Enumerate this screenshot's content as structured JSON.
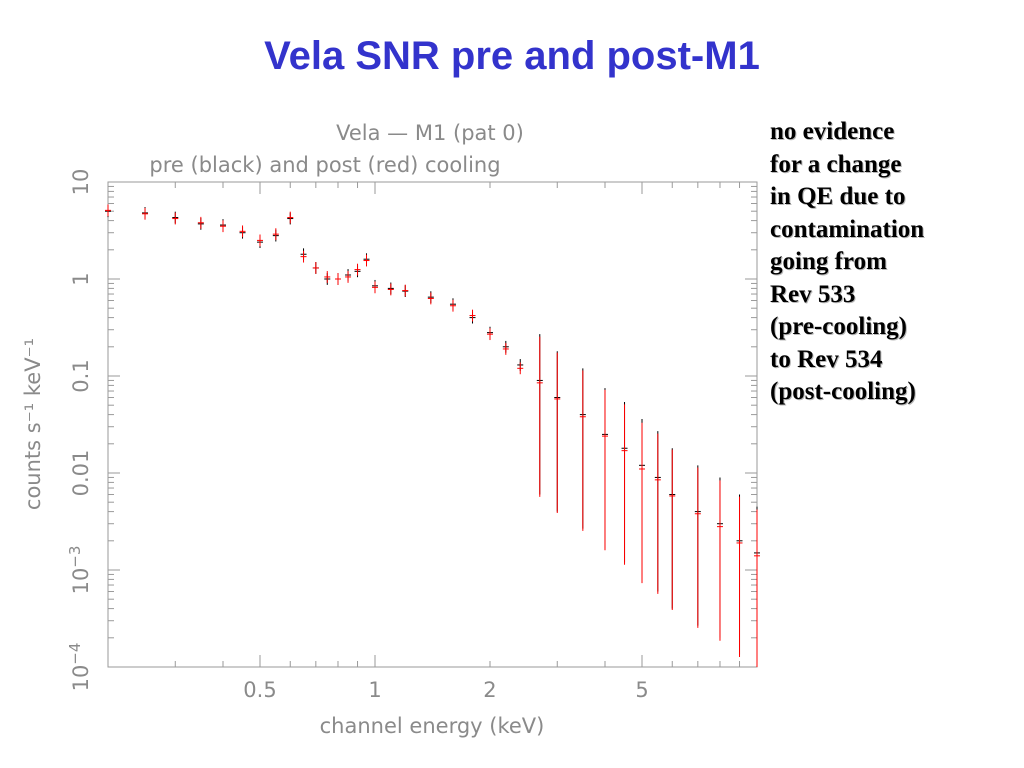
{
  "slide": {
    "title": "Vela SNR pre and post-M1",
    "note_lines": [
      "no evidence",
      "for a change",
      "in QE due to",
      "contamination",
      "going from",
      "Rev 533",
      "(pre-cooling)",
      "to Rev 534",
      "(post-cooling)"
    ]
  },
  "colors": {
    "title": "#3333cc",
    "pre": "#000000",
    "post": "#ff0000",
    "axis_text": "#8a8a8a"
  },
  "chart_data": {
    "type": "scatter",
    "title": "Vela — M1 (pat 0)",
    "subtitle": "pre (black) and post (red) cooling",
    "xlabel": "channel energy (keV)",
    "ylabel": "counts s⁻¹ keV⁻¹",
    "xscale": "log",
    "yscale": "log",
    "xlim": [
      0.2,
      10
    ],
    "ylim": [
      0.0001,
      10
    ],
    "xtick_labels": [
      {
        "value": 0.5,
        "label": "0.5"
      },
      {
        "value": 1,
        "label": "1"
      },
      {
        "value": 2,
        "label": "2"
      },
      {
        "value": 5,
        "label": "5"
      }
    ],
    "ytick_labels": [
      {
        "value": 10,
        "base": "10",
        "exp": ""
      },
      {
        "value": 1,
        "base": "1",
        "exp": ""
      },
      {
        "value": 0.1,
        "base": "0.1",
        "exp": ""
      },
      {
        "value": 0.01,
        "base": "0.01",
        "exp": ""
      },
      {
        "value": 0.001,
        "base": "10",
        "exp": "−3"
      },
      {
        "value": 0.0001,
        "base": "10",
        "exp": "−4"
      }
    ],
    "legend": "in subtitle",
    "grid": false,
    "series": [
      {
        "name": "pre",
        "color": "#000000",
        "x": [
          0.2,
          0.25,
          0.3,
          0.35,
          0.4,
          0.45,
          0.5,
          0.55,
          0.6,
          0.65,
          0.7,
          0.75,
          0.8,
          0.85,
          0.9,
          0.95,
          1.0,
          1.1,
          1.2,
          1.4,
          1.6,
          1.8,
          2.0,
          2.2,
          2.4,
          2.7,
          3.0,
          3.5,
          4.0,
          4.5,
          5.0,
          5.5,
          6.0,
          7.0,
          8.0,
          9.0,
          10.0
        ],
        "y": [
          5.0,
          4.8,
          4.3,
          3.7,
          3.6,
          3.0,
          2.4,
          2.8,
          4.2,
          1.8,
          1.3,
          1.0,
          1.0,
          1.1,
          1.2,
          1.6,
          0.85,
          0.8,
          0.75,
          0.65,
          0.55,
          0.4,
          0.28,
          0.2,
          0.13,
          0.09,
          0.06,
          0.04,
          0.025,
          0.018,
          0.012,
          0.009,
          0.006,
          0.004,
          0.003,
          0.002,
          0.0015
        ]
      },
      {
        "name": "post",
        "color": "#ff0000",
        "x": [
          0.2,
          0.25,
          0.3,
          0.35,
          0.4,
          0.45,
          0.5,
          0.55,
          0.6,
          0.65,
          0.7,
          0.75,
          0.8,
          0.85,
          0.9,
          0.95,
          1.0,
          1.1,
          1.2,
          1.4,
          1.6,
          1.8,
          2.0,
          2.2,
          2.4,
          2.7,
          3.0,
          3.5,
          4.0,
          4.5,
          5.0,
          5.5,
          6.0,
          7.0,
          8.0,
          9.0,
          10.0
        ],
        "y": [
          5.1,
          4.7,
          4.2,
          3.8,
          3.5,
          3.1,
          2.5,
          2.9,
          4.3,
          1.7,
          1.3,
          1.05,
          1.0,
          1.05,
          1.25,
          1.55,
          0.82,
          0.78,
          0.76,
          0.63,
          0.53,
          0.42,
          0.27,
          0.19,
          0.12,
          0.085,
          0.058,
          0.038,
          0.024,
          0.017,
          0.011,
          0.0085,
          0.0058,
          0.0038,
          0.0028,
          0.0019,
          0.0014
        ]
      }
    ]
  }
}
